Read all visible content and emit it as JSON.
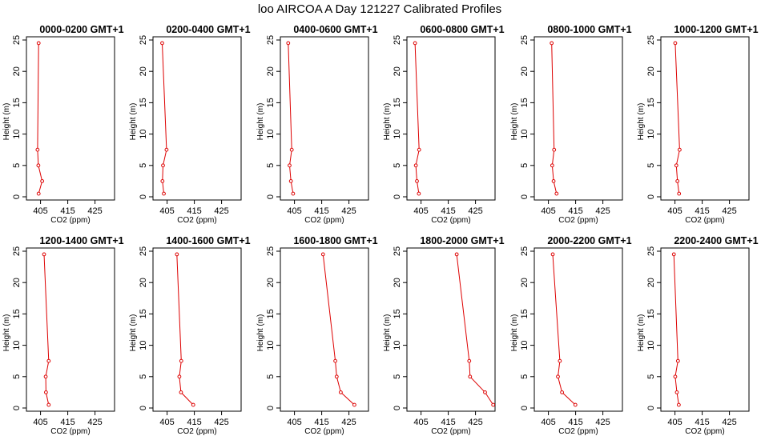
{
  "figure": {
    "title": "loo AIRCOA A  Day 121227  Calibrated Profiles",
    "line_color": "#dd0000"
  },
  "chart_data": [
    {
      "type": "line",
      "title": "0000-0200 GMT+1",
      "xlabel": "CO2 (ppm)",
      "ylabel": "Height (m)",
      "xlim": [
        401,
        431
      ],
      "ylim": [
        0,
        25
      ],
      "x_ticks": [
        405,
        415,
        425
      ],
      "y_ticks": [
        0,
        5,
        10,
        15,
        20,
        25
      ],
      "grid": false,
      "x": [
        404.3,
        405.6,
        404.2,
        403.9,
        404.3,
        403.9
      ],
      "y": [
        0.5,
        2.5,
        5,
        7.5,
        24.5,
        24.5
      ]
    },
    {
      "type": "line",
      "title": "0200-0400 GMT+1",
      "xlabel": "CO2 (ppm)",
      "ylabel": "Height (m)",
      "xlim": [
        401,
        431
      ],
      "ylim": [
        0,
        25
      ],
      "x_ticks": [
        405,
        415,
        425
      ],
      "y_ticks": [
        0,
        5,
        10,
        15,
        20,
        25
      ],
      "grid": false,
      "x": [
        403.8,
        403.3,
        403.5,
        404.8,
        403.2,
        403.1
      ],
      "y": [
        0.5,
        2.5,
        5,
        7.5,
        24.5,
        24.5
      ]
    },
    {
      "type": "line",
      "title": "0400-0600 GMT+1",
      "xlabel": "CO2 (ppm)",
      "ylabel": "Height (m)",
      "xlim": [
        401,
        431
      ],
      "ylim": [
        0,
        25
      ],
      "x_ticks": [
        405,
        415,
        425
      ],
      "y_ticks": [
        0,
        5,
        10,
        15,
        20,
        25
      ],
      "grid": false,
      "x": [
        404.5,
        403.7,
        403.2,
        404.0,
        402.7,
        402.6
      ],
      "y": [
        0.5,
        2.5,
        5,
        7.5,
        24.5,
        24.5
      ]
    },
    {
      "type": "line",
      "title": "0600-0800 GMT+1",
      "xlabel": "CO2 (ppm)",
      "ylabel": "Height (m)",
      "xlim": [
        401,
        431
      ],
      "ylim": [
        0,
        25
      ],
      "x_ticks": [
        405,
        415,
        425
      ],
      "y_ticks": [
        0,
        5,
        10,
        15,
        20,
        25
      ],
      "grid": false,
      "x": [
        404.2,
        403.5,
        403.1,
        404.3,
        402.8,
        402.7
      ],
      "y": [
        0.5,
        2.5,
        5,
        7.5,
        24.5,
        24.5
      ]
    },
    {
      "type": "line",
      "title": "0800-1000 GMT+1",
      "xlabel": "CO2 (ppm)",
      "ylabel": "Height (m)",
      "xlim": [
        401,
        431
      ],
      "ylim": [
        0,
        25
      ],
      "x_ticks": [
        405,
        415,
        425
      ],
      "y_ticks": [
        0,
        5,
        10,
        15,
        20,
        25
      ],
      "grid": false,
      "x": [
        408.0,
        406.9,
        406.4,
        407.1,
        406.2,
        406.1
      ],
      "y": [
        0.5,
        2.5,
        5,
        7.5,
        24.5,
        24.5
      ]
    },
    {
      "type": "line",
      "title": "1000-1200 GMT+1",
      "xlabel": "CO2 (ppm)",
      "ylabel": "Height (m)",
      "xlim": [
        401,
        431
      ],
      "ylim": [
        0,
        25
      ],
      "x_ticks": [
        405,
        415,
        425
      ],
      "y_ticks": [
        0,
        5,
        10,
        15,
        20,
        25
      ],
      "grid": false,
      "x": [
        406.5,
        405.9,
        405.5,
        406.7,
        405.1,
        405.0
      ],
      "y": [
        0.5,
        2.5,
        5,
        7.5,
        24.5,
        24.5
      ]
    },
    {
      "type": "line",
      "title": "1200-1400 GMT+1",
      "xlabel": "CO2 (ppm)",
      "ylabel": "Height (m)",
      "xlim": [
        401,
        431
      ],
      "ylim": [
        0,
        25
      ],
      "x_ticks": [
        405,
        415,
        425
      ],
      "y_ticks": [
        0,
        5,
        10,
        15,
        20,
        25
      ],
      "grid": false,
      "x": [
        408.0,
        407.0,
        406.9,
        408.0,
        406.3,
        406.2
      ],
      "y": [
        0.5,
        2.5,
        5,
        7.5,
        24.5,
        24.5
      ]
    },
    {
      "type": "line",
      "title": "1400-1600 GMT+1",
      "xlabel": "CO2 (ppm)",
      "ylabel": "Height (m)",
      "xlim": [
        401,
        431
      ],
      "ylim": [
        0,
        25
      ],
      "x_ticks": [
        405,
        415,
        425
      ],
      "y_ticks": [
        0,
        5,
        10,
        15,
        20,
        25
      ],
      "grid": false,
      "x": [
        414.6,
        410.1,
        409.5,
        410.2,
        408.6,
        408.5
      ],
      "y": [
        0.5,
        2.5,
        5,
        7.5,
        24.5,
        24.5
      ]
    },
    {
      "type": "line",
      "title": "1600-1800 GMT+1",
      "xlabel": "CO2 (ppm)",
      "ylabel": "Height (m)",
      "xlim": [
        401,
        431
      ],
      "ylim": [
        0,
        25
      ],
      "x_ticks": [
        405,
        415,
        425
      ],
      "y_ticks": [
        0,
        5,
        10,
        15,
        20,
        25
      ],
      "grid": false,
      "x": [
        427.0,
        422.0,
        420.5,
        420.0,
        415.5,
        415.5
      ],
      "y": [
        0.5,
        2.5,
        5,
        7.5,
        24.5,
        24.5
      ]
    },
    {
      "type": "line",
      "title": "1800-2000 GMT+1",
      "xlabel": "CO2 (ppm)",
      "ylabel": "Height (m)",
      "xlim": [
        401,
        431
      ],
      "ylim": [
        0,
        25
      ],
      "x_ticks": [
        405,
        415,
        425
      ],
      "y_ticks": [
        0,
        5,
        10,
        15,
        20,
        25
      ],
      "grid": false,
      "x": [
        431.5,
        428.5,
        423.0,
        422.7,
        418.1,
        418.1
      ],
      "y": [
        0.5,
        2.5,
        5,
        7.5,
        24.5,
        24.5
      ]
    },
    {
      "type": "line",
      "title": "2000-2200 GMT+1",
      "xlabel": "CO2 (ppm)",
      "ylabel": "Height (m)",
      "xlim": [
        401,
        431
      ],
      "ylim": [
        0,
        25
      ],
      "x_ticks": [
        405,
        415,
        425
      ],
      "y_ticks": [
        0,
        5,
        10,
        15,
        20,
        25
      ],
      "grid": false,
      "x": [
        414.9,
        410.0,
        408.5,
        409.2,
        406.6,
        406.6
      ],
      "y": [
        0.5,
        2.5,
        5,
        7.5,
        24.5,
        24.5
      ]
    },
    {
      "type": "line",
      "title": "2200-2400 GMT+1",
      "xlabel": "CO2 (ppm)",
      "ylabel": "Height (m)",
      "xlim": [
        401,
        431
      ],
      "ylim": [
        0,
        25
      ],
      "x_ticks": [
        405,
        415,
        425
      ],
      "y_ticks": [
        0,
        5,
        10,
        15,
        20,
        25
      ],
      "grid": false,
      "x": [
        406.4,
        405.7,
        405.1,
        406.1,
        404.6,
        404.5
      ],
      "y": [
        0.5,
        2.5,
        5,
        7.5,
        24.5,
        24.5
      ]
    }
  ]
}
